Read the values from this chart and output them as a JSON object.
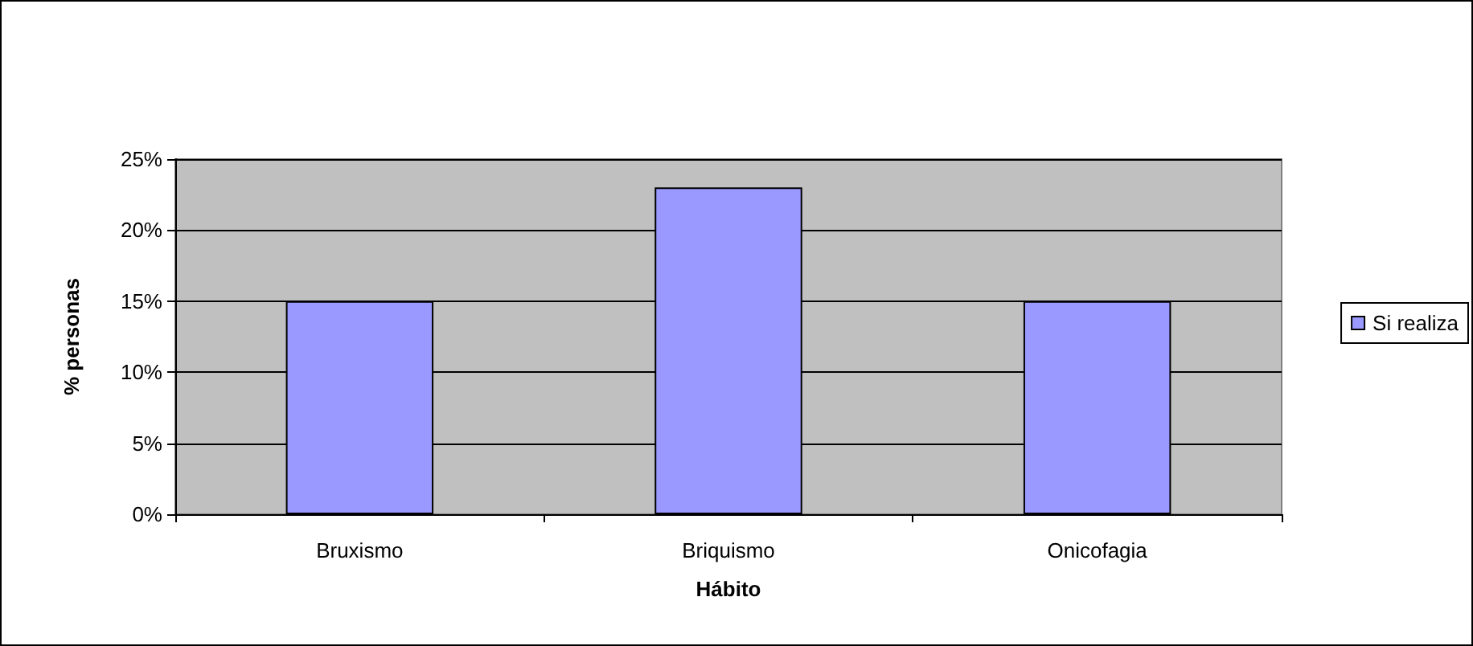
{
  "chart_data": {
    "type": "bar",
    "categories": [
      "Bruxismo",
      "Briquismo",
      "Onicofagia"
    ],
    "series": [
      {
        "name": "Si realiza",
        "color": "#9999ff",
        "values": [
          15,
          23,
          15
        ]
      }
    ],
    "xlabel": "Hábito",
    "ylabel": "% personas",
    "ylim": [
      0,
      25
    ],
    "yticks": [
      {
        "value": 0,
        "label": "0%"
      },
      {
        "value": 5,
        "label": "5%"
      },
      {
        "value": 10,
        "label": "10%"
      },
      {
        "value": 15,
        "label": "15%"
      },
      {
        "value": 20,
        "label": "20%"
      },
      {
        "value": 25,
        "label": "25%"
      }
    ],
    "grid": "y",
    "legend": "right"
  }
}
